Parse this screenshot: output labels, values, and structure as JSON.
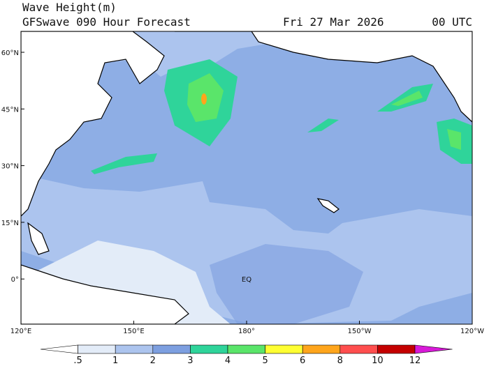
{
  "header": {
    "title": "Wave Height(m)",
    "subtitle": "GFSwave 090 Hour Forecast",
    "date": "Fri 27 Mar 2026",
    "time": "00 UTC"
  },
  "map": {
    "lat_labels": [
      "60°N",
      "45°N",
      "30°N",
      "15°N",
      "0°"
    ],
    "lon_labels": [
      "120°E",
      "150°E",
      "180°",
      "150°W",
      "120°W"
    ],
    "equator_label": "EQ"
  },
  "colorbar": {
    "levels": [
      {
        "value": 0.5,
        "label": ".5"
      },
      1,
      2,
      3,
      4,
      5,
      6,
      8,
      10,
      12
    ],
    "colors": [
      "#ffffff",
      "#e3ecf8",
      "#acc4ee",
      "#7d9fe0",
      "#2fd49a",
      "#5ae56a",
      "#ffff33",
      "#ffa51c",
      "#ff4e4e",
      "#c40000",
      "#d81ad8"
    ]
  }
}
